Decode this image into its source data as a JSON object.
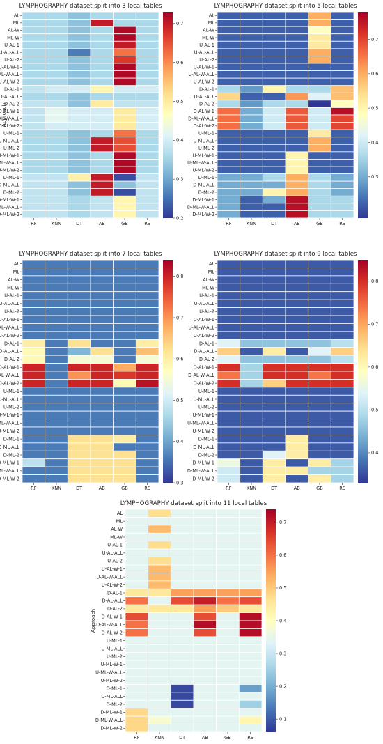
{
  "approaches": [
    "AL",
    "ML",
    "AL-W",
    "ML-W",
    "U-AL-1",
    "U-AL-ALL",
    "U-AL-2",
    "U-AL-W-1",
    "U-AL-W-ALL",
    "U-AL-W-2",
    "D-AL-1",
    "D-AL-ALL",
    "D-AL-2",
    "D-AL-W-1",
    "D-AL-W-ALL",
    "D-AL-W-2",
    "U-ML-1",
    "U-ML-ALL",
    "U-ML-2",
    "U-ML-W-1",
    "U-ML-W-ALL",
    "U-ML-W-2",
    "D-ML-1",
    "D-ML-ALL",
    "D-ML-2",
    "D-ML-W-1",
    "D-ML-W-ALL",
    "D-ML-W-2"
  ],
  "classifiers": [
    "RF",
    "KNN",
    "DT",
    "AB",
    "GB",
    "RS"
  ],
  "chart_data": [
    {
      "type": "heatmap",
      "title": "LYMPHOGRAPHY dataset split into 3 local tables",
      "ylabel": "Approach",
      "colorbar": {
        "min": 0.2,
        "max": 0.73,
        "ticks": [
          0.2,
          0.3,
          0.4,
          0.5,
          0.6,
          0.7
        ]
      },
      "values": [
        [
          0.36,
          0.36,
          0.33,
          0.36,
          0.36,
          0.36
        ],
        [
          0.36,
          0.36,
          0.33,
          0.7,
          0.36,
          0.36
        ],
        [
          0.36,
          0.36,
          0.33,
          0.36,
          0.72,
          0.36
        ],
        [
          0.36,
          0.36,
          0.33,
          0.36,
          0.72,
          0.36
        ],
        [
          0.36,
          0.36,
          0.33,
          0.36,
          0.7,
          0.36
        ],
        [
          0.36,
          0.36,
          0.26,
          0.36,
          0.62,
          0.36
        ],
        [
          0.36,
          0.36,
          0.33,
          0.36,
          0.67,
          0.36
        ],
        [
          0.36,
          0.36,
          0.33,
          0.36,
          0.72,
          0.36
        ],
        [
          0.36,
          0.36,
          0.33,
          0.36,
          0.72,
          0.36
        ],
        [
          0.36,
          0.36,
          0.33,
          0.36,
          0.72,
          0.36
        ],
        [
          0.38,
          0.4,
          0.4,
          0.48,
          0.4,
          0.4
        ],
        [
          0.36,
          0.36,
          0.33,
          0.36,
          0.36,
          0.36
        ],
        [
          0.38,
          0.38,
          0.33,
          0.5,
          0.38,
          0.38
        ],
        [
          0.38,
          0.42,
          0.4,
          0.4,
          0.5,
          0.4
        ],
        [
          0.38,
          0.42,
          0.4,
          0.4,
          0.5,
          0.4
        ],
        [
          0.38,
          0.4,
          0.4,
          0.4,
          0.5,
          0.4
        ],
        [
          0.36,
          0.36,
          0.33,
          0.36,
          0.62,
          0.36
        ],
        [
          0.36,
          0.36,
          0.33,
          0.7,
          0.65,
          0.36
        ],
        [
          0.36,
          0.36,
          0.33,
          0.7,
          0.65,
          0.36
        ],
        [
          0.36,
          0.36,
          0.33,
          0.36,
          0.72,
          0.36
        ],
        [
          0.36,
          0.36,
          0.33,
          0.36,
          0.72,
          0.36
        ],
        [
          0.36,
          0.36,
          0.33,
          0.36,
          0.72,
          0.36
        ],
        [
          0.38,
          0.38,
          0.49,
          0.7,
          0.22,
          0.38
        ],
        [
          0.38,
          0.38,
          0.33,
          0.7,
          0.33,
          0.38
        ],
        [
          0.38,
          0.38,
          0.33,
          0.7,
          0.22,
          0.38
        ],
        [
          0.38,
          0.38,
          0.36,
          0.38,
          0.48,
          0.38
        ],
        [
          0.38,
          0.38,
          0.36,
          0.38,
          0.48,
          0.38
        ],
        [
          0.38,
          0.38,
          0.36,
          0.38,
          0.48,
          0.38
        ]
      ]
    },
    {
      "type": "heatmap",
      "title": "LYMPHOGRAPHY dataset split into 5 local tables",
      "ylabel": "",
      "colorbar": {
        "min": 0.18,
        "max": 0.78,
        "ticks": [
          0.3,
          0.4,
          0.5,
          0.6,
          0.7
        ]
      },
      "values": [
        [
          0.22,
          0.22,
          0.22,
          0.22,
          0.6,
          0.22
        ],
        [
          0.22,
          0.22,
          0.22,
          0.22,
          0.6,
          0.22
        ],
        [
          0.22,
          0.22,
          0.22,
          0.22,
          0.48,
          0.22
        ],
        [
          0.22,
          0.22,
          0.22,
          0.22,
          0.52,
          0.22
        ],
        [
          0.22,
          0.22,
          0.22,
          0.22,
          0.52,
          0.22
        ],
        [
          0.22,
          0.22,
          0.22,
          0.22,
          0.6,
          0.22
        ],
        [
          0.22,
          0.22,
          0.22,
          0.22,
          0.6,
          0.22
        ],
        [
          0.22,
          0.22,
          0.22,
          0.22,
          0.22,
          0.22
        ],
        [
          0.22,
          0.22,
          0.22,
          0.22,
          0.22,
          0.22
        ],
        [
          0.22,
          0.22,
          0.22,
          0.22,
          0.22,
          0.22
        ],
        [
          0.36,
          0.28,
          0.5,
          0.36,
          0.36,
          0.58
        ],
        [
          0.55,
          0.22,
          0.22,
          0.62,
          0.42,
          0.58
        ],
        [
          0.36,
          0.28,
          0.36,
          0.36,
          0.16,
          0.48
        ],
        [
          0.66,
          0.3,
          0.4,
          0.68,
          0.4,
          0.76
        ],
        [
          0.66,
          0.3,
          0.4,
          0.68,
          0.4,
          0.7
        ],
        [
          0.66,
          0.3,
          0.4,
          0.68,
          0.4,
          0.7
        ],
        [
          0.22,
          0.22,
          0.22,
          0.22,
          0.52,
          0.22
        ],
        [
          0.22,
          0.22,
          0.22,
          0.22,
          0.6,
          0.22
        ],
        [
          0.22,
          0.22,
          0.22,
          0.22,
          0.6,
          0.22
        ],
        [
          0.22,
          0.22,
          0.22,
          0.5,
          0.22,
          0.22
        ],
        [
          0.22,
          0.22,
          0.22,
          0.5,
          0.22,
          0.22
        ],
        [
          0.22,
          0.22,
          0.22,
          0.5,
          0.22,
          0.22
        ],
        [
          0.3,
          0.3,
          0.36,
          0.6,
          0.36,
          0.3
        ],
        [
          0.3,
          0.3,
          0.3,
          0.6,
          0.36,
          0.3
        ],
        [
          0.3,
          0.3,
          0.5,
          0.6,
          0.36,
          0.3
        ],
        [
          0.3,
          0.22,
          0.3,
          0.76,
          0.36,
          0.36
        ],
        [
          0.3,
          0.22,
          0.22,
          0.76,
          0.36,
          0.36
        ],
        [
          0.3,
          0.22,
          0.22,
          0.76,
          0.36,
          0.36
        ]
      ]
    },
    {
      "type": "heatmap",
      "title": "LYMPHOGRAPHY dataset split into 7 local tables",
      "ylabel": "",
      "colorbar": {
        "min": 0.3,
        "max": 0.84,
        "ticks": [
          0.3,
          0.4,
          0.5,
          0.6,
          0.7,
          0.8
        ]
      },
      "values": [
        [
          0.36,
          0.36,
          0.36,
          0.36,
          0.36,
          0.36
        ],
        [
          0.36,
          0.36,
          0.36,
          0.36,
          0.36,
          0.36
        ],
        [
          0.36,
          0.36,
          0.36,
          0.36,
          0.36,
          0.36
        ],
        [
          0.36,
          0.36,
          0.36,
          0.36,
          0.36,
          0.36
        ],
        [
          0.36,
          0.36,
          0.36,
          0.36,
          0.36,
          0.36
        ],
        [
          0.36,
          0.36,
          0.36,
          0.36,
          0.36,
          0.36
        ],
        [
          0.36,
          0.36,
          0.36,
          0.36,
          0.36,
          0.36
        ],
        [
          0.36,
          0.36,
          0.36,
          0.36,
          0.36,
          0.36
        ],
        [
          0.36,
          0.36,
          0.36,
          0.36,
          0.36,
          0.36
        ],
        [
          0.36,
          0.36,
          0.36,
          0.36,
          0.36,
          0.36
        ],
        [
          0.6,
          0.36,
          0.62,
          0.36,
          0.36,
          0.6
        ],
        [
          0.58,
          0.36,
          0.42,
          0.62,
          0.36,
          0.66
        ],
        [
          0.58,
          0.36,
          0.55,
          0.55,
          0.36,
          0.55
        ],
        [
          0.8,
          0.36,
          0.8,
          0.8,
          0.68,
          0.8
        ],
        [
          0.8,
          0.36,
          0.7,
          0.8,
          0.78,
          0.8
        ],
        [
          0.8,
          0.36,
          0.8,
          0.8,
          0.58,
          0.82
        ],
        [
          0.36,
          0.36,
          0.36,
          0.36,
          0.36,
          0.36
        ],
        [
          0.36,
          0.36,
          0.36,
          0.36,
          0.36,
          0.36
        ],
        [
          0.36,
          0.36,
          0.36,
          0.36,
          0.36,
          0.36
        ],
        [
          0.36,
          0.36,
          0.36,
          0.36,
          0.36,
          0.36
        ],
        [
          0.36,
          0.36,
          0.36,
          0.36,
          0.36,
          0.36
        ],
        [
          0.36,
          0.36,
          0.36,
          0.36,
          0.36,
          0.36
        ],
        [
          0.36,
          0.36,
          0.62,
          0.62,
          0.6,
          0.36
        ],
        [
          0.36,
          0.36,
          0.62,
          0.62,
          0.36,
          0.36
        ],
        [
          0.36,
          0.36,
          0.62,
          0.62,
          0.62,
          0.36
        ],
        [
          0.48,
          0.36,
          0.62,
          0.62,
          0.62,
          0.36
        ],
        [
          0.36,
          0.36,
          0.62,
          0.62,
          0.62,
          0.36
        ],
        [
          0.36,
          0.36,
          0.62,
          0.62,
          0.62,
          0.36
        ]
      ]
    },
    {
      "type": "heatmap",
      "title": "LYMPHOGRAPHY dataset split into 9 local tables",
      "ylabel": "",
      "colorbar": {
        "min": 0.33,
        "max": 0.85,
        "ticks": [
          0.4,
          0.5,
          0.6,
          0.7,
          0.8
        ]
      },
      "values": [
        [
          0.36,
          0.36,
          0.36,
          0.36,
          0.36,
          0.36
        ],
        [
          0.36,
          0.36,
          0.36,
          0.36,
          0.36,
          0.36
        ],
        [
          0.36,
          0.36,
          0.36,
          0.36,
          0.36,
          0.36
        ],
        [
          0.36,
          0.36,
          0.36,
          0.36,
          0.36,
          0.36
        ],
        [
          0.36,
          0.36,
          0.36,
          0.36,
          0.36,
          0.36
        ],
        [
          0.36,
          0.36,
          0.36,
          0.36,
          0.36,
          0.36
        ],
        [
          0.36,
          0.36,
          0.36,
          0.36,
          0.36,
          0.36
        ],
        [
          0.36,
          0.36,
          0.36,
          0.36,
          0.36,
          0.36
        ],
        [
          0.36,
          0.36,
          0.36,
          0.36,
          0.36,
          0.36
        ],
        [
          0.36,
          0.36,
          0.36,
          0.36,
          0.36,
          0.36
        ],
        [
          0.54,
          0.46,
          0.46,
          0.46,
          0.46,
          0.5
        ],
        [
          0.66,
          0.36,
          0.62,
          0.36,
          0.54,
          0.66
        ],
        [
          0.54,
          0.46,
          0.46,
          0.46,
          0.46,
          0.5
        ],
        [
          0.8,
          0.48,
          0.8,
          0.8,
          0.8,
          0.8
        ],
        [
          0.74,
          0.48,
          0.8,
          0.8,
          0.74,
          0.8
        ],
        [
          0.8,
          0.48,
          0.66,
          0.8,
          0.8,
          0.8
        ],
        [
          0.36,
          0.36,
          0.36,
          0.36,
          0.36,
          0.36
        ],
        [
          0.36,
          0.36,
          0.36,
          0.36,
          0.36,
          0.36
        ],
        [
          0.36,
          0.36,
          0.36,
          0.36,
          0.36,
          0.36
        ],
        [
          0.36,
          0.36,
          0.36,
          0.36,
          0.36,
          0.36
        ],
        [
          0.36,
          0.36,
          0.36,
          0.36,
          0.36,
          0.36
        ],
        [
          0.36,
          0.36,
          0.36,
          0.36,
          0.36,
          0.36
        ],
        [
          0.36,
          0.36,
          0.36,
          0.62,
          0.36,
          0.36
        ],
        [
          0.36,
          0.36,
          0.36,
          0.62,
          0.36,
          0.36
        ],
        [
          0.36,
          0.36,
          0.54,
          0.62,
          0.36,
          0.36
        ],
        [
          0.56,
          0.36,
          0.62,
          0.36,
          0.62,
          0.48
        ],
        [
          0.52,
          0.36,
          0.62,
          0.62,
          0.48,
          0.48
        ],
        [
          0.52,
          0.36,
          0.62,
          0.36,
          0.62,
          0.48
        ]
      ]
    },
    {
      "type": "heatmap",
      "title": "LYMPHOGRAPHY dataset split into 11 local tables",
      "ylabel": "Approach",
      "colorbar": {
        "min": 0.06,
        "max": 0.74,
        "ticks": [
          0.1,
          0.2,
          0.3,
          0.4,
          0.5,
          0.6,
          0.7
        ]
      },
      "values": [
        [
          0.34,
          0.47,
          0.34,
          0.34,
          0.34,
          0.34
        ],
        [
          0.34,
          0.34,
          0.34,
          0.34,
          0.34,
          0.34
        ],
        [
          0.34,
          0.52,
          0.34,
          0.34,
          0.34,
          0.34
        ],
        [
          0.34,
          0.34,
          0.34,
          0.34,
          0.34,
          0.34
        ],
        [
          0.34,
          0.47,
          0.34,
          0.34,
          0.34,
          0.34
        ],
        [
          0.34,
          0.34,
          0.34,
          0.34,
          0.34,
          0.34
        ],
        [
          0.34,
          0.47,
          0.34,
          0.34,
          0.34,
          0.34
        ],
        [
          0.34,
          0.52,
          0.34,
          0.34,
          0.34,
          0.34
        ],
        [
          0.34,
          0.52,
          0.34,
          0.34,
          0.34,
          0.34
        ],
        [
          0.34,
          0.52,
          0.34,
          0.34,
          0.34,
          0.34
        ],
        [
          0.45,
          0.45,
          0.55,
          0.55,
          0.55,
          0.55
        ],
        [
          0.6,
          0.34,
          0.64,
          0.7,
          0.6,
          0.64
        ],
        [
          0.45,
          0.45,
          0.45,
          0.55,
          0.5,
          0.45
        ],
        [
          0.64,
          0.34,
          0.34,
          0.64,
          0.34,
          0.72
        ],
        [
          0.6,
          0.34,
          0.34,
          0.72,
          0.34,
          0.72
        ],
        [
          0.6,
          0.34,
          0.34,
          0.64,
          0.34,
          0.72
        ],
        [
          0.34,
          0.34,
          0.34,
          0.34,
          0.34,
          0.34
        ],
        [
          0.34,
          0.34,
          0.34,
          0.34,
          0.34,
          0.34
        ],
        [
          0.34,
          0.34,
          0.34,
          0.34,
          0.34,
          0.34
        ],
        [
          0.34,
          0.34,
          0.34,
          0.34,
          0.34,
          0.34
        ],
        [
          0.34,
          0.34,
          0.34,
          0.34,
          0.34,
          0.34
        ],
        [
          0.34,
          0.34,
          0.34,
          0.34,
          0.34,
          0.34
        ],
        [
          0.34,
          0.34,
          0.08,
          0.34,
          0.34,
          0.18
        ],
        [
          0.34,
          0.34,
          0.08,
          0.34,
          0.34,
          0.34
        ],
        [
          0.34,
          0.34,
          0.08,
          0.34,
          0.34,
          0.25
        ],
        [
          0.48,
          0.34,
          0.34,
          0.34,
          0.34,
          0.34
        ],
        [
          0.48,
          0.38,
          0.34,
          0.34,
          0.34,
          0.42
        ],
        [
          0.48,
          0.34,
          0.34,
          0.34,
          0.34,
          0.34
        ]
      ]
    }
  ]
}
